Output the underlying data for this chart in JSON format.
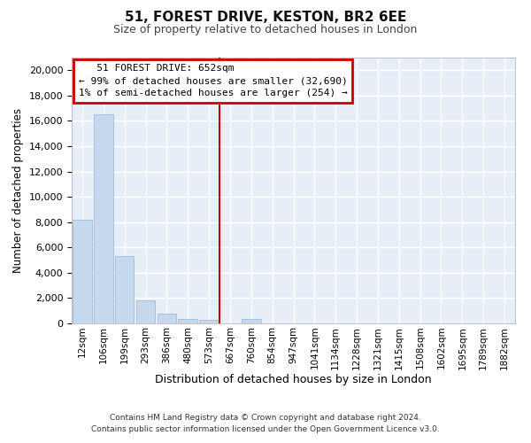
{
  "title1": "51, FOREST DRIVE, KESTON, BR2 6EE",
  "title2": "Size of property relative to detached houses in London",
  "xlabel": "Distribution of detached houses by size in London",
  "ylabel": "Number of detached properties",
  "footer1": "Contains HM Land Registry data © Crown copyright and database right 2024.",
  "footer2": "Contains public sector information licensed under the Open Government Licence v3.0.",
  "annotation_title": "51 FOREST DRIVE: 652sqm",
  "annotation_line1": "← 99% of detached houses are smaller (32,690)",
  "annotation_line2": "1% of semi-detached houses are larger (254) →",
  "bar_color": "#c5d8ee",
  "bar_edge_color": "#a0bcd8",
  "vline_color": "#cc0000",
  "background_color": "#e8eef8",
  "categories": [
    "12sqm",
    "106sqm",
    "199sqm",
    "293sqm",
    "386sqm",
    "480sqm",
    "573sqm",
    "667sqm",
    "760sqm",
    "854sqm",
    "947sqm",
    "1041sqm",
    "1134sqm",
    "1228sqm",
    "1321sqm",
    "1415sqm",
    "1508sqm",
    "1602sqm",
    "1695sqm",
    "1789sqm",
    "1882sqm"
  ],
  "bar_heights": [
    8200,
    16500,
    5300,
    1850,
    800,
    350,
    250,
    0,
    350,
    0,
    0,
    0,
    0,
    0,
    0,
    0,
    0,
    0,
    0,
    0,
    0
  ],
  "vline_x": 7,
  "ylim": [
    0,
    21000
  ],
  "yticks": [
    0,
    2000,
    4000,
    6000,
    8000,
    10000,
    12000,
    14000,
    16000,
    18000,
    20000
  ]
}
